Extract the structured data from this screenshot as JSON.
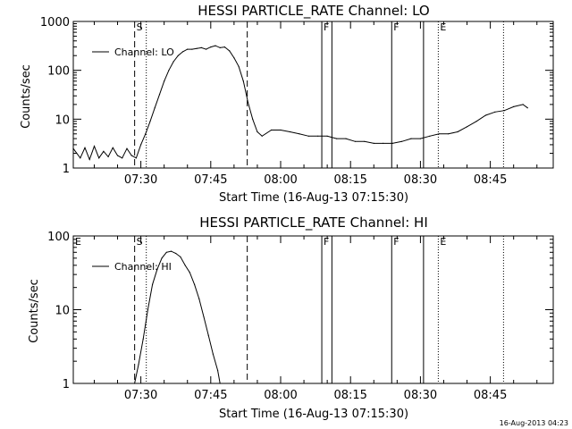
{
  "footer": {
    "stamp": "16-Aug-2013 04:23"
  },
  "chart_data": [
    {
      "type": "line",
      "scale": "log",
      "title": "HESSI PARTICLE_RATE Channel: LO",
      "xlabel": "Start Time (16-Aug-13 07:15:30)",
      "ylabel": "Counts/sec",
      "xlim": [
        "07:15:30",
        "08:58:30"
      ],
      "ylim": [
        1,
        1000
      ],
      "x_ticks": [
        "07:30",
        "07:45",
        "08:00",
        "08:15",
        "08:30",
        "08:45"
      ],
      "y_ticks": [
        "1",
        "10",
        "100",
        "1000"
      ],
      "legend": "top-left",
      "series": [
        {
          "name": "Channel: LO",
          "x": [
            "07:15:30",
            "07:17:00",
            "07:18:00",
            "07:19:00",
            "07:20:00",
            "07:21:00",
            "07:22:00",
            "07:23:00",
            "07:24:00",
            "07:25:00",
            "07:26:00",
            "07:27:00",
            "07:28:00",
            "07:29:00",
            "07:30:00",
            "07:31:00",
            "07:32:00",
            "07:33:00",
            "07:34:00",
            "07:35:00",
            "07:36:00",
            "07:37:00",
            "07:38:00",
            "07:39:00",
            "07:40:00",
            "07:41:00",
            "07:42:00",
            "07:43:00",
            "07:44:00",
            "07:45:00",
            "07:46:00",
            "07:47:00",
            "07:48:00",
            "07:49:00",
            "07:50:00",
            "07:51:00",
            "07:52:00",
            "07:53:00",
            "07:54:00",
            "07:55:00",
            "07:56:00",
            "07:58:00",
            "08:00:00",
            "08:02:00",
            "08:04:00",
            "08:06:00",
            "08:08:00",
            "08:10:00",
            "08:12:00",
            "08:14:00",
            "08:16:00",
            "08:18:00",
            "08:20:00",
            "08:22:00",
            "08:24:00",
            "08:26:00",
            "08:28:00",
            "08:30:00",
            "08:32:00",
            "08:34:00",
            "08:36:00",
            "08:38:00",
            "08:40:00",
            "08:42:00",
            "08:44:00",
            "08:46:00",
            "08:48:00",
            "08:50:00",
            "08:52:00",
            "08:53:00"
          ],
          "values": [
            2.5,
            1.6,
            2.6,
            1.5,
            2.8,
            1.6,
            2.2,
            1.7,
            2.6,
            1.8,
            1.6,
            2.5,
            1.8,
            1.6,
            3,
            5,
            9,
            17,
            32,
            60,
            100,
            150,
            200,
            240,
            270,
            270,
            280,
            290,
            270,
            300,
            320,
            290,
            300,
            250,
            180,
            120,
            60,
            22,
            10,
            5.5,
            4.5,
            6,
            6,
            5.5,
            5,
            4.5,
            4.5,
            4.5,
            4,
            4,
            3.5,
            3.5,
            3.2,
            3.2,
            3.2,
            3.5,
            4,
            4,
            4.5,
            5,
            5,
            5.5,
            7,
            9,
            12,
            14,
            15,
            18,
            20,
            17
          ]
        }
      ],
      "markers": [
        {
          "time": "07:28:40",
          "label": "S",
          "style": "dashed"
        },
        {
          "time": "07:31:10",
          "label": "",
          "style": "dotted"
        },
        {
          "time": "07:52:50",
          "label": "",
          "style": "dashed"
        },
        {
          "time": "08:08:50",
          "label": "F",
          "style": "solid"
        },
        {
          "time": "08:11:00",
          "label": "",
          "style": "solid"
        },
        {
          "time": "08:23:50",
          "label": "F",
          "style": "solid"
        },
        {
          "time": "08:30:40",
          "label": "",
          "style": "solid"
        },
        {
          "time": "08:33:50",
          "label": "E",
          "style": "dotted"
        },
        {
          "time": "08:47:50",
          "label": "",
          "style": "dotted"
        }
      ]
    },
    {
      "type": "line",
      "scale": "log",
      "title": "HESSI PARTICLE_RATE Channel: HI",
      "xlabel": "Start Time (16-Aug-13 07:15:30)",
      "ylabel": "Counts/sec",
      "xlim": [
        "07:15:30",
        "08:58:30"
      ],
      "ylim": [
        1,
        100
      ],
      "x_ticks": [
        "07:30",
        "07:45",
        "08:00",
        "08:15",
        "08:30",
        "08:45"
      ],
      "y_ticks": [
        "1",
        "10",
        "100"
      ],
      "legend": "top-left",
      "series": [
        {
          "name": "Channel: HI",
          "x": [
            "07:28:40",
            "07:29:30",
            "07:30:30",
            "07:31:30",
            "07:32:30",
            "07:33:30",
            "07:34:30",
            "07:35:30",
            "07:36:30",
            "07:37:30",
            "07:38:30",
            "07:39:30",
            "07:40:30",
            "07:41:30",
            "07:42:30",
            "07:43:30",
            "07:44:30",
            "07:45:30",
            "07:46:30",
            "07:47:00"
          ],
          "values": [
            1,
            1.8,
            4,
            10,
            22,
            35,
            50,
            60,
            62,
            58,
            52,
            40,
            32,
            22,
            14,
            8,
            4.5,
            2.5,
            1.5,
            1
          ]
        }
      ],
      "markers": [
        {
          "time": "07:15:30",
          "label": "E",
          "style": "none"
        },
        {
          "time": "07:28:40",
          "label": "S",
          "style": "dashed"
        },
        {
          "time": "07:31:10",
          "label": "",
          "style": "dotted"
        },
        {
          "time": "07:52:50",
          "label": "",
          "style": "dashed"
        },
        {
          "time": "08:08:50",
          "label": "F",
          "style": "solid"
        },
        {
          "time": "08:11:00",
          "label": "",
          "style": "solid"
        },
        {
          "time": "08:23:50",
          "label": "F",
          "style": "solid"
        },
        {
          "time": "08:30:40",
          "label": "",
          "style": "solid"
        },
        {
          "time": "08:33:50",
          "label": "E",
          "style": "dotted"
        },
        {
          "time": "08:47:50",
          "label": "",
          "style": "dotted"
        }
      ]
    }
  ]
}
